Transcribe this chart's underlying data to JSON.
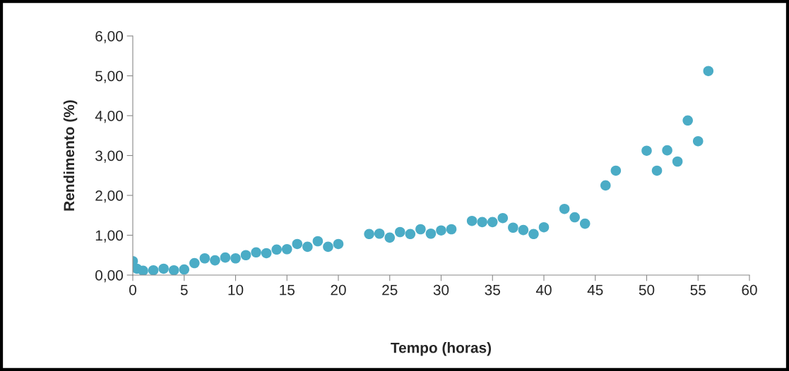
{
  "chart_data": {
    "type": "scatter",
    "xlabel": "Tempo (horas)",
    "ylabel": "Rendimento (%)",
    "x": [
      0,
      0.4,
      1,
      2,
      3,
      4,
      5,
      6,
      7,
      8,
      9,
      10,
      11,
      12,
      13,
      14,
      15,
      16,
      17,
      18,
      19,
      20,
      23,
      24,
      25,
      26,
      27,
      28,
      29,
      30,
      31,
      33,
      34,
      35,
      36,
      37,
      38,
      39,
      40,
      42,
      43,
      44,
      46,
      47,
      50,
      51,
      52,
      53,
      54,
      55,
      56
    ],
    "series": [
      {
        "color": "#4bacc6",
        "values": [
          0.35,
          0.16,
          0.11,
          0.12,
          0.16,
          0.12,
          0.14,
          0.3,
          0.42,
          0.37,
          0.44,
          0.42,
          0.5,
          0.57,
          0.55,
          0.64,
          0.65,
          0.78,
          0.71,
          0.85,
          0.71,
          0.78,
          1.03,
          1.04,
          0.94,
          1.08,
          1.03,
          1.15,
          1.04,
          1.12,
          1.15,
          1.36,
          1.33,
          1.33,
          1.43,
          1.19,
          1.13,
          1.03,
          1.2,
          1.66,
          1.45,
          1.29,
          2.25,
          2.62,
          3.12,
          2.62,
          3.13,
          2.85,
          3.88,
          3.36,
          5.12
        ]
      }
    ],
    "xlim": [
      0,
      60
    ],
    "xticks": [
      0,
      5,
      10,
      15,
      20,
      25,
      30,
      35,
      40,
      45,
      50,
      55,
      60
    ],
    "ylim": [
      0,
      6
    ],
    "yticks": [
      {
        "value": 0,
        "label": "0,00"
      },
      {
        "value": 1,
        "label": "1,00"
      },
      {
        "value": 2,
        "label": "2,00"
      },
      {
        "value": 3,
        "label": "3,00"
      },
      {
        "value": 4,
        "label": "4,00"
      },
      {
        "value": 5,
        "label": "5,00"
      },
      {
        "value": 6,
        "label": "6,00"
      }
    ],
    "grid": false,
    "marker": "circle",
    "legend": false
  }
}
